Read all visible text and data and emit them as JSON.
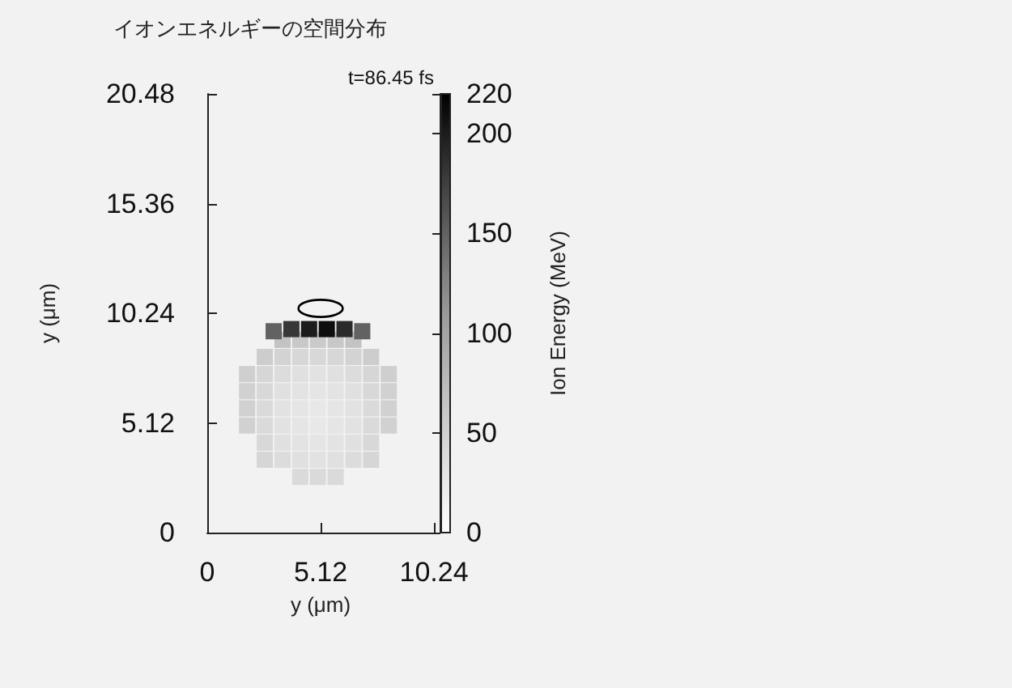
{
  "chart_data": {
    "type": "scatter",
    "title": "イオンエネルギーの空間分布",
    "annotations": [
      "t=86.45 fs"
    ],
    "xlabel": "y (μm)",
    "ylabel": "y (μm)",
    "clabel": "Ion Energy (MeV)",
    "xlim": [
      0,
      10.24
    ],
    "xticks": [
      0,
      5.12,
      10.24
    ],
    "ylim": [
      0,
      20.48
    ],
    "yticks": [
      0,
      5.12,
      10.24,
      15.36,
      20.48
    ],
    "clim": [
      0,
      220
    ],
    "cticks": [
      0,
      50,
      100,
      150,
      200,
      220
    ],
    "grid": false,
    "marker": "square",
    "series": [
      {
        "x": [
          4.2,
          5.0,
          5.8,
          2.6,
          3.4,
          4.2,
          5.0,
          5.8,
          6.6,
          7.4,
          2.6,
          3.4,
          4.2,
          5.0,
          5.8,
          6.6,
          7.4,
          1.8,
          2.6,
          3.4,
          4.2,
          5.0,
          5.8,
          6.6,
          7.4,
          8.2,
          1.8,
          2.6,
          3.4,
          4.2,
          5.0,
          5.8,
          6.6,
          7.4,
          8.2,
          1.8,
          2.6,
          3.4,
          4.2,
          5.0,
          5.8,
          6.6,
          7.4,
          8.2,
          1.8,
          2.6,
          3.4,
          4.2,
          5.0,
          5.8,
          6.6,
          7.4,
          8.2,
          2.6,
          3.4,
          4.2,
          5.0,
          5.8,
          6.6,
          7.4,
          3.4,
          4.2,
          5.0,
          5.8,
          6.6,
          3.0,
          3.8,
          4.6,
          5.4,
          6.2,
          7.0
        ],
        "values": [
          2.6,
          2.6,
          2.6,
          3.4,
          3.4,
          3.4,
          3.4,
          3.4,
          3.4,
          3.4,
          4.2,
          4.2,
          4.2,
          4.2,
          4.2,
          4.2,
          4.2,
          5.0,
          5.0,
          5.0,
          5.0,
          5.0,
          5.0,
          5.0,
          5.0,
          5.0,
          5.8,
          5.8,
          5.8,
          5.8,
          5.8,
          5.8,
          5.8,
          5.8,
          5.8,
          6.6,
          6.6,
          6.6,
          6.6,
          6.6,
          6.6,
          6.6,
          6.6,
          6.6,
          7.4,
          7.4,
          7.4,
          7.4,
          7.4,
          7.4,
          7.4,
          7.4,
          7.4,
          8.2,
          8.2,
          8.2,
          8.2,
          8.2,
          8.2,
          8.2,
          9.0,
          9.0,
          9.0,
          9.0,
          9.0,
          9.4,
          9.5,
          9.5,
          9.5,
          9.5,
          9.4
        ],
        "cvalues": [
          40,
          40,
          40,
          45,
          38,
          34,
          32,
          34,
          38,
          45,
          42,
          34,
          30,
          28,
          30,
          34,
          42,
          50,
          40,
          32,
          28,
          25,
          28,
          32,
          40,
          50,
          50,
          40,
          32,
          28,
          25,
          28,
          32,
          40,
          50,
          50,
          42,
          34,
          30,
          28,
          30,
          34,
          42,
          50,
          52,
          45,
          38,
          34,
          32,
          34,
          38,
          45,
          52,
          55,
          48,
          44,
          42,
          44,
          48,
          55,
          65,
          60,
          58,
          60,
          65,
          150,
          180,
          200,
          210,
          190,
          150
        ]
      }
    ]
  }
}
